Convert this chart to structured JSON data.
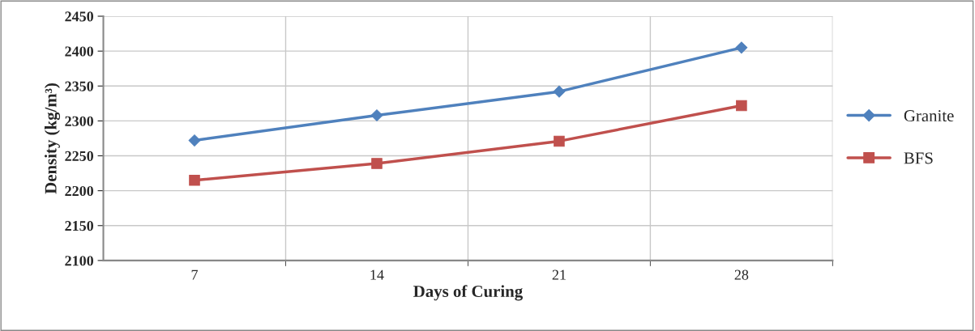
{
  "chart_data": {
    "type": "line",
    "xlabel": "Days of Curing",
    "ylabel": "Density (kg/m³)",
    "categories": [
      "7",
      "14",
      "21",
      "28"
    ],
    "series": [
      {
        "name": "Granite",
        "color": "#4f81bd",
        "marker": "diamond",
        "values": [
          2272,
          2308,
          2342,
          2405
        ]
      },
      {
        "name": "BFS",
        "color": "#c0504d",
        "marker": "square",
        "values": [
          2215,
          2239,
          2271,
          2322
        ]
      }
    ],
    "ylim": [
      2100,
      2450
    ],
    "yticks": [
      2100,
      2150,
      2200,
      2250,
      2300,
      2350,
      2400,
      2450
    ],
    "grid": true,
    "legend": "right",
    "line_style": "solid"
  }
}
